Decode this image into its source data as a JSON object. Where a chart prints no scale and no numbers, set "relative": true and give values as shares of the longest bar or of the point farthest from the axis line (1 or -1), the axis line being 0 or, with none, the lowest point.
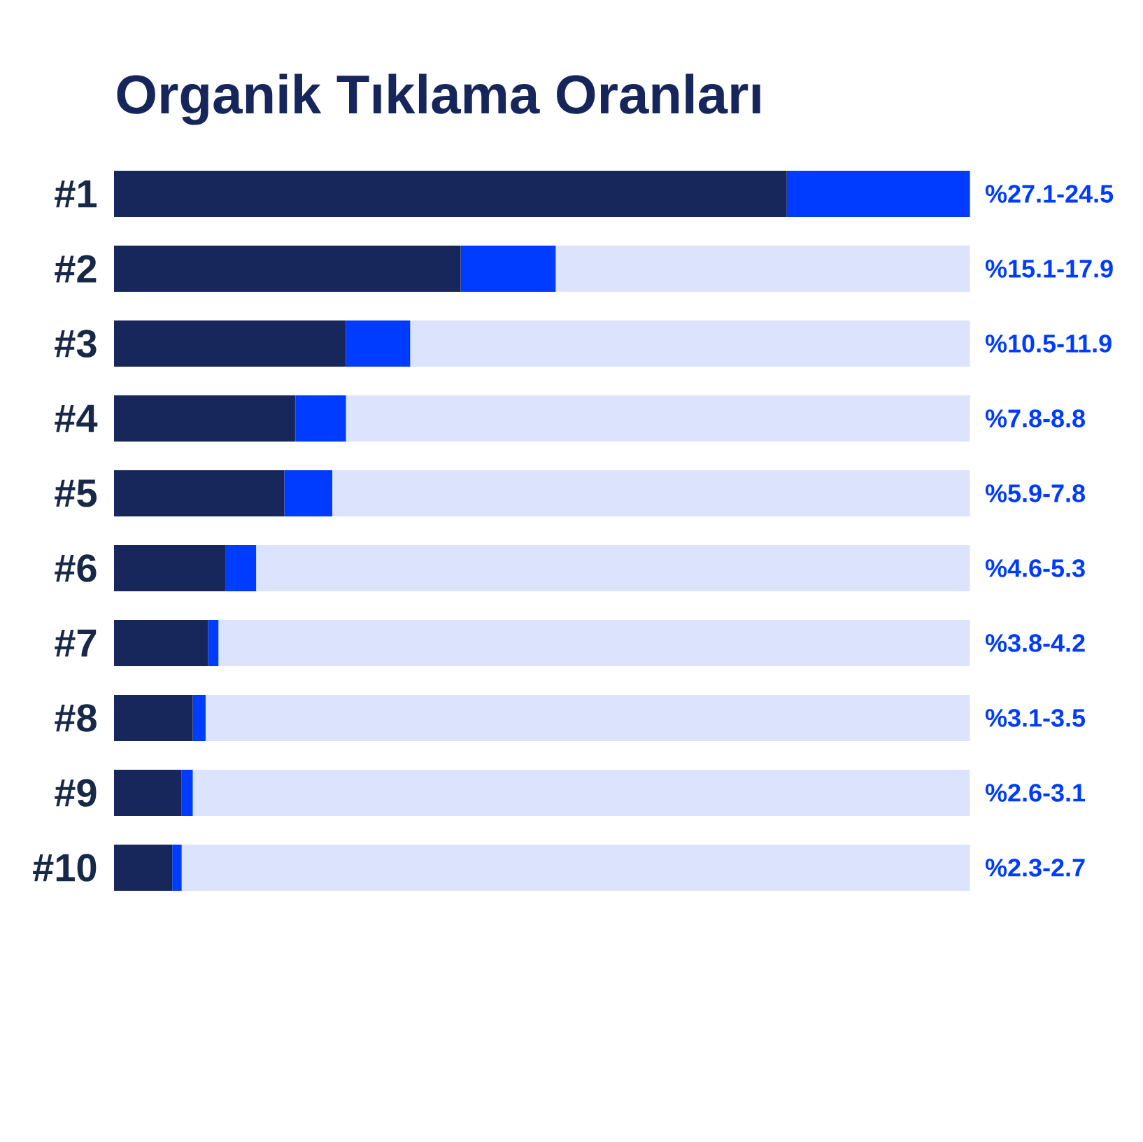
{
  "chart_data": {
    "type": "bar",
    "orientation": "horizontal",
    "stacked": true,
    "relative": true,
    "title": "Organik Tıklama Oranları",
    "categories": [
      "#1",
      "#2",
      "#3",
      "#4",
      "#5",
      "#6",
      "#7",
      "#8",
      "#9",
      "#10"
    ],
    "series": [
      {
        "color": "#17275b",
        "values": [
          0.786,
          0.405,
          0.271,
          0.212,
          0.199,
          0.13,
          0.11,
          0.092,
          0.079,
          0.068
        ]
      },
      {
        "color": "#003cff",
        "values": [
          0.214,
          0.111,
          0.075,
          0.059,
          0.056,
          0.036,
          0.012,
          0.015,
          0.013,
          0.011
        ]
      },
      {
        "color": "#dce4fd",
        "values": [
          0.0,
          0.484,
          0.654,
          0.729,
          0.745,
          0.834,
          0.878,
          0.893,
          0.908,
          0.921
        ]
      }
    ],
    "annotations": [
      "%27.1-24.5",
      "%15.1-17.9",
      "%10.5-11.9",
      "%7.8-8.8",
      "%5.9-7.8",
      "%4.6-5.3",
      "%3.8-4.2",
      "%3.1-3.5",
      "%2.6-3.1",
      "%2.3-2.7"
    ]
  }
}
